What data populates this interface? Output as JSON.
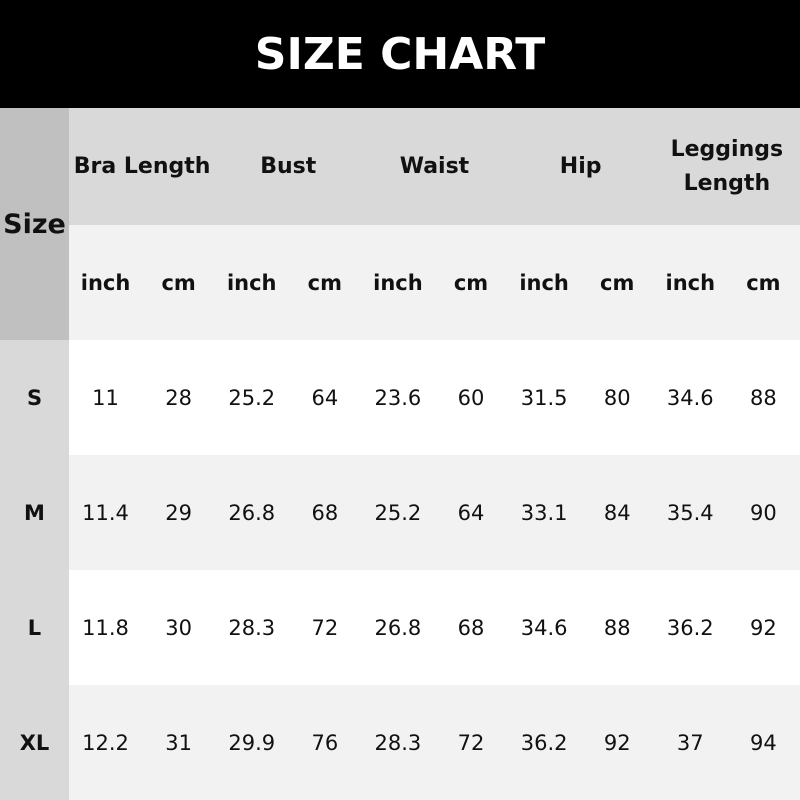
{
  "title": "SIZE CHART",
  "size_header": "Size",
  "groups": [
    "Bra Length",
    "Bust",
    "Waist",
    "Hip",
    "Leggings Length"
  ],
  "units": [
    "inch",
    "cm"
  ],
  "rows": [
    {
      "size": "S",
      "values": [
        "11",
        "28",
        "25.2",
        "64",
        "23.6",
        "60",
        "31.5",
        "80",
        "34.6",
        "88"
      ]
    },
    {
      "size": "M",
      "values": [
        "11.4",
        "29",
        "26.8",
        "68",
        "25.2",
        "64",
        "33.1",
        "84",
        "35.4",
        "90"
      ]
    },
    {
      "size": "L",
      "values": [
        "11.8",
        "30",
        "28.3",
        "72",
        "26.8",
        "68",
        "34.6",
        "88",
        "36.2",
        "92"
      ]
    },
    {
      "size": "XL",
      "values": [
        "12.2",
        "31",
        "29.9",
        "76",
        "28.3",
        "72",
        "36.2",
        "92",
        "37",
        "94"
      ]
    }
  ]
}
